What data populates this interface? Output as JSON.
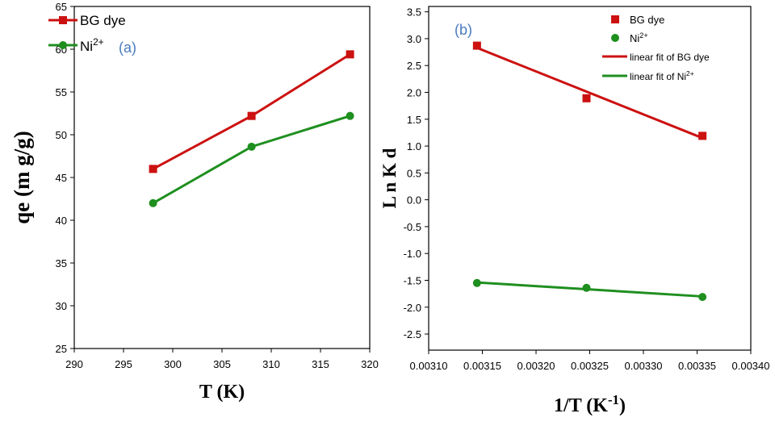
{
  "colors": {
    "red": "#cc1111",
    "green": "#1f8f1f",
    "tag": "#4a7bbf",
    "axis": "#000000"
  },
  "chart_data": [
    {
      "type": "line",
      "panel_label": "(a)",
      "xlabel": "T (K)",
      "ylabel": "qe (m g/g)",
      "xlim": [
        290,
        320
      ],
      "ylim": [
        25,
        65
      ],
      "xticks": [
        290,
        295,
        300,
        305,
        310,
        315,
        320
      ],
      "yticks": [
        25,
        30,
        35,
        40,
        45,
        50,
        55,
        60,
        65
      ],
      "x": [
        298,
        308,
        318
      ],
      "series": [
        {
          "name": "BG dye",
          "values": [
            46.0,
            52.2,
            59.4
          ],
          "color": "#cc1111",
          "marker": "square"
        },
        {
          "name": "Ni2+",
          "name_base": "Ni",
          "name_sup": "2+",
          "values": [
            42.0,
            48.6,
            52.2
          ],
          "color": "#1f8f1f",
          "marker": "circle"
        }
      ],
      "legend_position": "top-left",
      "grid": false
    },
    {
      "type": "scatter",
      "panel_label": "(b)",
      "xlabel": "1/T (K-1)",
      "xlabel_base": "1/T (K",
      "xlabel_sup": "-1",
      "xlabel_end": ")",
      "ylabel": "L n K d",
      "xlim": [
        0.0031,
        0.0034
      ],
      "ylim": [
        -2.8,
        3.6
      ],
      "xticks": [
        "0.00310",
        "0.00315",
        "0.00320",
        "0.00325",
        "0.00330",
        "0.00335",
        "0.00340"
      ],
      "yticks": [
        "3.5",
        "3.0",
        "2.5",
        "2.0",
        "1.5",
        "1.0",
        "0.5",
        "0.0",
        "-0.5",
        "-1.0",
        "-1.5",
        "-2.0",
        "-2.5"
      ],
      "x": [
        0.003145,
        0.003247,
        0.003355
      ],
      "series": [
        {
          "name": "BG dye",
          "values": [
            2.87,
            1.89,
            1.19
          ],
          "color": "#cc1111",
          "marker": "square"
        },
        {
          "name": "Ni2+",
          "name_base": "Ni",
          "name_sup": "2+",
          "values": [
            -1.55,
            -1.64,
            -1.81
          ],
          "color": "#1f8f1f",
          "marker": "circle"
        },
        {
          "name": "linear fit of BG dye",
          "type": "line",
          "x": [
            0.003145,
            0.003355
          ],
          "values": [
            2.83,
            1.15
          ],
          "color": "#cc1111"
        },
        {
          "name": "linear fit of Ni2+",
          "name_base": "linear fit of Ni",
          "name_sup": "2+",
          "type": "line",
          "x": [
            0.003145,
            0.003355
          ],
          "values": [
            -1.54,
            -1.8
          ],
          "color": "#1f8f1f"
        }
      ],
      "legend_position": "top-right",
      "grid": false
    }
  ]
}
